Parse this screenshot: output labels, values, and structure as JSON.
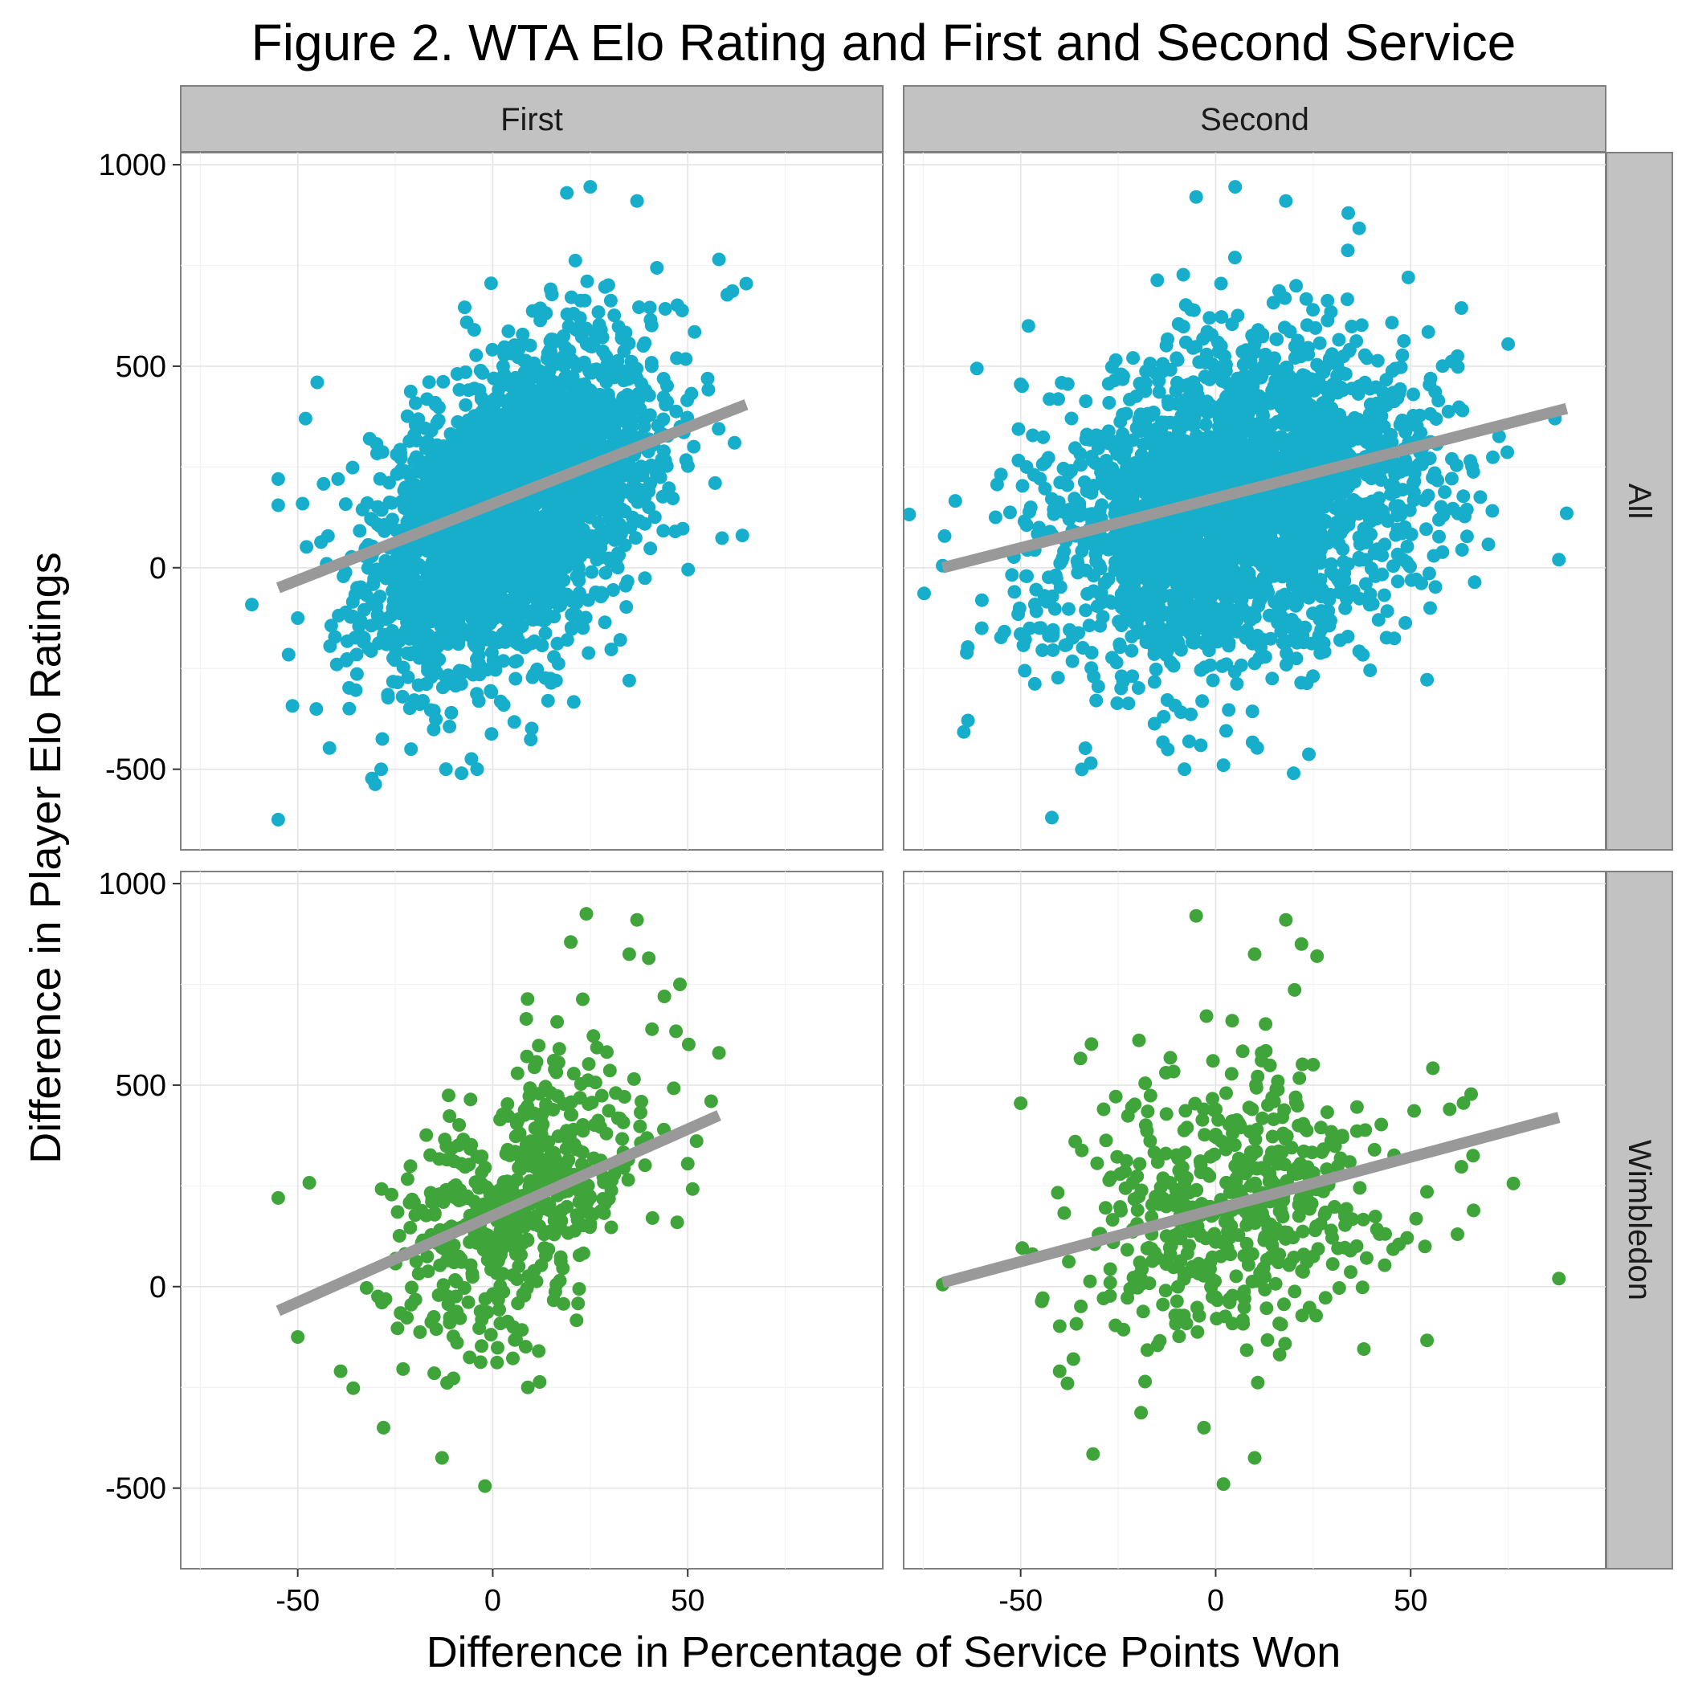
{
  "figure": {
    "title": "Figure 2. WTA Elo Rating and First and Second Service",
    "xlabel": "Difference in Percentage of Service Points Won",
    "ylabel": "Difference in Player Elo Ratings"
  },
  "chart_data": {
    "type": "scatter",
    "facets": {
      "columns": [
        "First",
        "Second"
      ],
      "rows": [
        "All",
        "Wimbledon"
      ]
    },
    "xlim": [
      -80,
      100
    ],
    "ylim": [
      -700,
      1030
    ],
    "x_ticks": [
      -50,
      0,
      50
    ],
    "y_ticks": [
      -500,
      0,
      500,
      1000
    ],
    "grid": true,
    "colors": {
      "All": "#17aecb",
      "Wimbledon": "#3fa43a",
      "fit_line": "#999999"
    },
    "panels": [
      {
        "row": "All",
        "column": "First",
        "regression_line": {
          "x": [
            -55,
            65
          ],
          "y": [
            -50,
            405
          ]
        },
        "point_cloud": {
          "center_x": 5,
          "center_y": 150,
          "sd_x": 18,
          "sd_y": 200,
          "correlation": 0.45,
          "n": 2600
        },
        "outliers": [
          [
            -55,
            -625
          ],
          [
            -50,
            -125
          ],
          [
            -45,
            460
          ],
          [
            -55,
            220
          ],
          [
            -8,
            -510
          ],
          [
            -12,
            -500
          ],
          [
            -4,
            -500
          ],
          [
            25,
            945
          ],
          [
            19,
            930
          ],
          [
            37,
            910
          ],
          [
            65,
            705
          ],
          [
            58,
            765
          ],
          [
            64,
            80
          ],
          [
            62,
            310
          ],
          [
            35,
            -280
          ],
          [
            -40,
            -240
          ],
          [
            -48,
            370
          ],
          [
            -55,
            155
          ]
        ]
      },
      {
        "row": "All",
        "column": "Second",
        "regression_line": {
          "x": [
            -70,
            90
          ],
          "y": [
            0,
            395
          ]
        },
        "point_cloud": {
          "center_x": 5,
          "center_y": 150,
          "sd_x": 24,
          "sd_y": 200,
          "correlation": 0.25,
          "n": 2600
        },
        "outliers": [
          [
            -70,
            5
          ],
          [
            -50,
            455
          ],
          [
            -48,
            600
          ],
          [
            -42,
            -620
          ],
          [
            -32,
            -485
          ],
          [
            -8,
            -500
          ],
          [
            2,
            -490
          ],
          [
            20,
            -510
          ],
          [
            -5,
            920
          ],
          [
            5,
            945
          ],
          [
            18,
            910
          ],
          [
            34,
            880
          ],
          [
            75,
            555
          ],
          [
            88,
            20
          ],
          [
            90,
            135
          ],
          [
            87,
            370
          ],
          [
            55,
            -100
          ],
          [
            62,
            525
          ]
        ]
      },
      {
        "row": "Wimbledon",
        "column": "First",
        "regression_line": {
          "x": [
            -55,
            58
          ],
          "y": [
            -60,
            425
          ]
        },
        "point_cloud": {
          "center_x": 5,
          "center_y": 200,
          "sd_x": 16,
          "sd_y": 180,
          "correlation": 0.4,
          "n": 520
        },
        "outliers": [
          [
            -55,
            220
          ],
          [
            -50,
            -125
          ],
          [
            -39,
            -210
          ],
          [
            -28,
            -350
          ],
          [
            -13,
            -425
          ],
          [
            -2,
            -495
          ],
          [
            24,
            925
          ],
          [
            37,
            910
          ],
          [
            20,
            855
          ],
          [
            35,
            825
          ],
          [
            40,
            815
          ],
          [
            48,
            750
          ],
          [
            44,
            720
          ],
          [
            58,
            580
          ],
          [
            56,
            460
          ],
          [
            50,
            305
          ],
          [
            9,
            -250
          ],
          [
            -15,
            -215
          ]
        ]
      },
      {
        "row": "Wimbledon",
        "column": "Second",
        "regression_line": {
          "x": [
            -70,
            88
          ],
          "y": [
            10,
            420
          ]
        },
        "point_cloud": {
          "center_x": 5,
          "center_y": 200,
          "sd_x": 20,
          "sd_y": 180,
          "correlation": 0.2,
          "n": 520
        },
        "outliers": [
          [
            -70,
            5
          ],
          [
            -50,
            455
          ],
          [
            -38,
            -240
          ],
          [
            -40,
            -210
          ],
          [
            -3,
            -350
          ],
          [
            2,
            -490
          ],
          [
            10,
            -425
          ],
          [
            -5,
            920
          ],
          [
            18,
            910
          ],
          [
            22,
            850
          ],
          [
            26,
            820
          ],
          [
            10,
            825
          ],
          [
            88,
            20
          ],
          [
            66,
            325
          ],
          [
            60,
            440
          ],
          [
            62,
            130
          ],
          [
            47,
            105
          ],
          [
            38,
            -155
          ]
        ]
      }
    ]
  }
}
